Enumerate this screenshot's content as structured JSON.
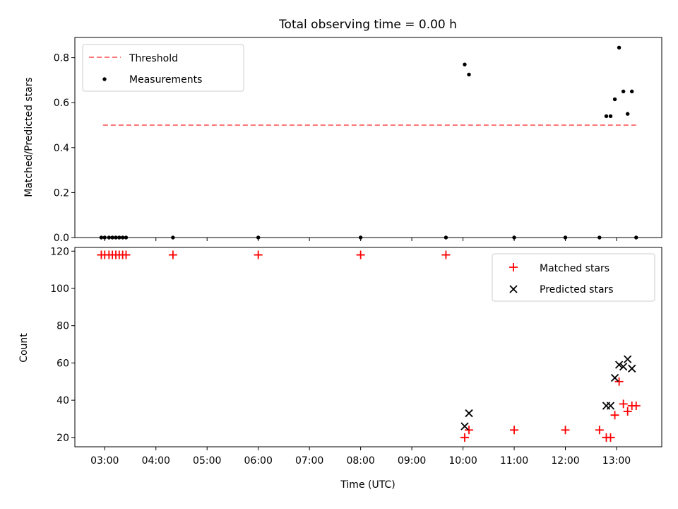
{
  "chart_data": [
    {
      "type": "scatter",
      "title": "Total observing time = 0.00 h",
      "ylabel": "Matched/Predicted stars",
      "ylim": [
        0,
        0.89
      ],
      "y_ticks": [
        "0.0",
        "0.2",
        "0.4",
        "0.6",
        "0.8"
      ],
      "threshold": {
        "name": "Threshold",
        "value": 0.5,
        "x_range": [
          "02:58",
          "13:23"
        ],
        "color": "#ff7777"
      },
      "grid": false,
      "legend": "top-left",
      "series": [
        {
          "name": "Measurements",
          "color": "#000000",
          "points": [
            [
              "02:56",
              0.0
            ],
            [
              "03:00",
              0.0
            ],
            [
              "03:05",
              0.0
            ],
            [
              "03:09",
              0.0
            ],
            [
              "03:13",
              0.0
            ],
            [
              "03:17",
              0.0
            ],
            [
              "03:21",
              0.0
            ],
            [
              "03:25",
              0.0
            ],
            [
              "04:20",
              0.0
            ],
            [
              "06:00",
              0.0
            ],
            [
              "08:00",
              0.0
            ],
            [
              "09:40",
              0.0
            ],
            [
              "11:00",
              0.0
            ],
            [
              "12:00",
              0.0
            ],
            [
              "12:40",
              0.0
            ],
            [
              "10:02",
              0.77
            ],
            [
              "10:07",
              0.725
            ],
            [
              "12:48",
              0.54
            ],
            [
              "12:53",
              0.54
            ],
            [
              "12:58",
              0.615
            ],
            [
              "13:03",
              0.845
            ],
            [
              "13:08",
              0.65
            ],
            [
              "13:13",
              0.55
            ],
            [
              "13:18",
              0.65
            ],
            [
              "13:23",
              0.0
            ]
          ]
        }
      ]
    },
    {
      "type": "scatter",
      "title": "",
      "xlabel": "Time (UTC)",
      "ylabel": "Count",
      "ylim": [
        15,
        122
      ],
      "xlim": [
        "02:25",
        "13:53"
      ],
      "x_ticks": [
        "03:00",
        "04:00",
        "05:00",
        "06:00",
        "07:00",
        "08:00",
        "09:00",
        "10:00",
        "11:00",
        "12:00",
        "13:00"
      ],
      "y_ticks": [
        "20",
        "40",
        "60",
        "80",
        "100",
        "120"
      ],
      "grid": false,
      "legend": "top-right",
      "series": [
        {
          "name": "Matched stars",
          "marker": "plus",
          "color": "#ff0000",
          "points": [
            [
              "02:56",
              118
            ],
            [
              "03:00",
              118
            ],
            [
              "03:05",
              118
            ],
            [
              "03:09",
              118
            ],
            [
              "03:13",
              118
            ],
            [
              "03:17",
              118
            ],
            [
              "03:21",
              118
            ],
            [
              "03:25",
              118
            ],
            [
              "04:20",
              118
            ],
            [
              "06:00",
              118
            ],
            [
              "08:00",
              118
            ],
            [
              "09:40",
              118
            ],
            [
              "10:02",
              20
            ],
            [
              "10:07",
              24
            ],
            [
              "11:00",
              24
            ],
            [
              "12:00",
              24
            ],
            [
              "12:40",
              24
            ],
            [
              "12:48",
              20
            ],
            [
              "12:53",
              20
            ],
            [
              "12:58",
              32
            ],
            [
              "13:03",
              50
            ],
            [
              "13:08",
              38
            ],
            [
              "13:13",
              34
            ],
            [
              "13:18",
              37
            ],
            [
              "13:23",
              37
            ]
          ]
        },
        {
          "name": "Predicted stars",
          "marker": "x",
          "color": "#000000",
          "points": [
            [
              "10:02",
              26
            ],
            [
              "10:07",
              33
            ],
            [
              "12:48",
              37
            ],
            [
              "12:53",
              37
            ],
            [
              "12:58",
              52
            ],
            [
              "13:03",
              59
            ],
            [
              "13:08",
              58
            ],
            [
              "13:13",
              62
            ],
            [
              "13:18",
              57
            ]
          ]
        }
      ]
    }
  ]
}
